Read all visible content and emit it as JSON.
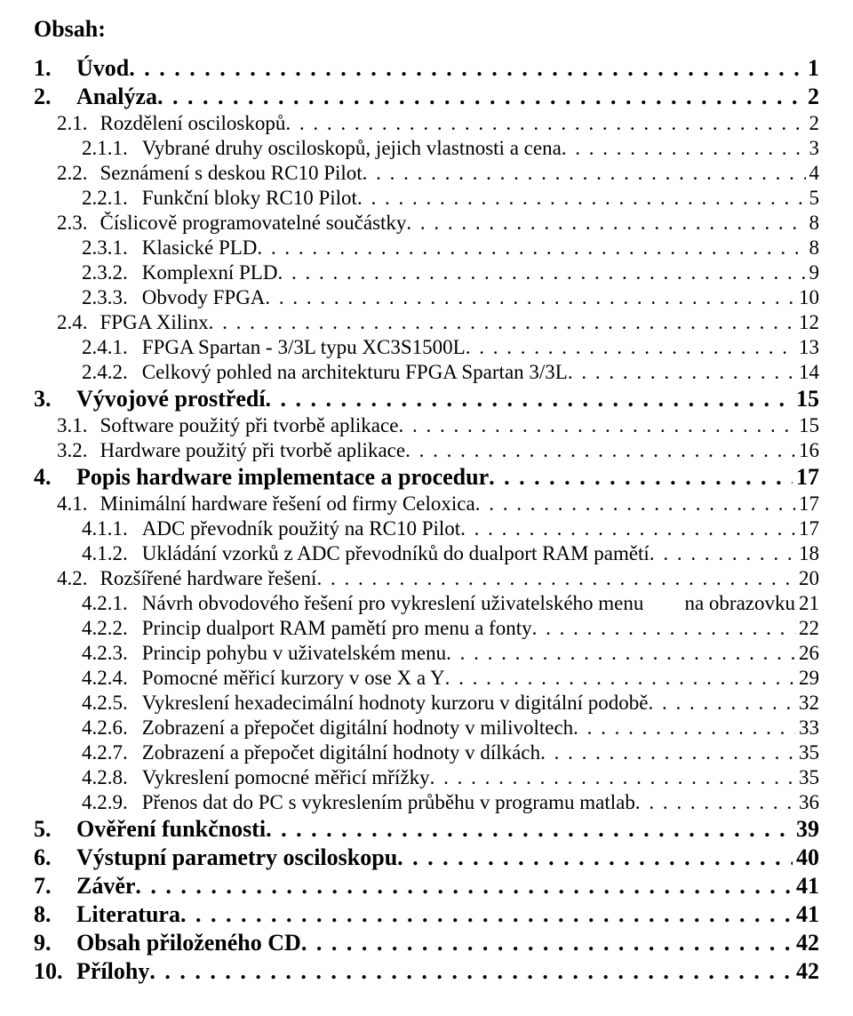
{
  "heading": "Obsah:",
  "entries": [
    {
      "level": 1,
      "num": "1.",
      "title": "Úvod",
      "page": "1"
    },
    {
      "level": 1,
      "num": "2.",
      "title": "Analýza",
      "page": "2"
    },
    {
      "level": 2,
      "num": "2.1.",
      "title": "Rozdělení osciloskopů",
      "page": "2"
    },
    {
      "level": 3,
      "num": "2.1.1.",
      "title": "Vybrané druhy osciloskopů, jejich vlastnosti a cena",
      "page": "3"
    },
    {
      "level": 2,
      "num": "2.2.",
      "title": "Seznámení s deskou RC10 Pilot",
      "page": "4"
    },
    {
      "level": 3,
      "num": "2.2.1.",
      "title": "Funkční bloky RC10 Pilot",
      "page": "5"
    },
    {
      "level": 2,
      "num": "2.3.",
      "title": "Číslicově programovatelné součástky",
      "page": "8"
    },
    {
      "level": 3,
      "num": "2.3.1.",
      "title": "Klasické PLD",
      "page": "8"
    },
    {
      "level": 3,
      "num": "2.3.2.",
      "title": "Komplexní PLD",
      "page": "9"
    },
    {
      "level": 3,
      "num": "2.3.3.",
      "title": "Obvody FPGA",
      "page": "10"
    },
    {
      "level": 2,
      "num": "2.4.",
      "title": "FPGA Xilinx",
      "page": "12"
    },
    {
      "level": 3,
      "num": "2.4.1.",
      "title": "FPGA Spartan - 3/3L typu XC3S1500L",
      "page": "13"
    },
    {
      "level": 3,
      "num": "2.4.2.",
      "title": "Celkový pohled na architekturu FPGA Spartan 3/3L",
      "page": "14"
    },
    {
      "level": 1,
      "num": "3.",
      "title": "Vývojové prostředí",
      "page": "15"
    },
    {
      "level": 2,
      "num": "3.1.",
      "title": "Software použitý při tvorbě aplikace",
      "page": "15"
    },
    {
      "level": 2,
      "num": "3.2.",
      "title": "Hardware použitý při tvorbě aplikace",
      "page": "16"
    },
    {
      "level": 1,
      "num": "4.",
      "title": "Popis hardware implementace a procedur",
      "page": "17"
    },
    {
      "level": 2,
      "num": "4.1.",
      "title": "Minimální hardware řešení od firmy Celoxica",
      "page": "17"
    },
    {
      "level": 3,
      "num": "4.1.1.",
      "title": "ADC převodník použitý na RC10 Pilot",
      "page": "17"
    },
    {
      "level": 3,
      "num": "4.1.2.",
      "title": "Ukládání vzorků z ADC převodníků do dualport RAM pamětí",
      "page": "18"
    },
    {
      "level": 2,
      "num": "4.2.",
      "title": "Rozšířené hardware řešení",
      "page": "20"
    },
    {
      "level": 3,
      "num": "4.2.1.",
      "title": "Návrh obvodového řešení pro vykreslení uživatelského menu ",
      "tail": "na obrazovku",
      "page": "21",
      "noLead": true
    },
    {
      "level": 3,
      "num": "4.2.2.",
      "title": "Princip dualport RAM pamětí pro menu a fonty",
      "page": "22"
    },
    {
      "level": 3,
      "num": "4.2.3.",
      "title": "Princip pohybu v uživatelském menu",
      "page": "26"
    },
    {
      "level": 3,
      "num": "4.2.4.",
      "title": "Pomocné měřicí kurzory v ose X a Y",
      "page": "29"
    },
    {
      "level": 3,
      "num": "4.2.5.",
      "title": "Vykreslení hexadecimální hodnoty kurzoru v digitální podobě",
      "page": "32"
    },
    {
      "level": 3,
      "num": "4.2.6.",
      "title": "Zobrazení a přepočet digitální hodnoty v milivoltech",
      "page": "33"
    },
    {
      "level": 3,
      "num": "4.2.7.",
      "title": "Zobrazení a přepočet digitální hodnoty v dílkách",
      "page": "35"
    },
    {
      "level": 3,
      "num": "4.2.8.",
      "title": "Vykreslení pomocné měřicí mřížky",
      "page": "35"
    },
    {
      "level": 3,
      "num": "4.2.9.",
      "title": "Přenos dat do PC s vykreslením průběhu v programu matlab",
      "page": "36"
    },
    {
      "level": 1,
      "num": "5.",
      "title": "Ověření funkčnosti",
      "page": "39"
    },
    {
      "level": 1,
      "num": "6.",
      "title": "Výstupní parametry osciloskopu",
      "page": "40"
    },
    {
      "level": 1,
      "num": "7.",
      "title": "Závěr",
      "page": "41"
    },
    {
      "level": 1,
      "num": "8.",
      "title": "Literatura",
      "page": "41"
    },
    {
      "level": 1,
      "num": "9.",
      "title": "Obsah přiloženého CD",
      "page": "42"
    },
    {
      "level": 1,
      "num": "10.",
      "title": "Přílohy",
      "page": "42"
    }
  ]
}
